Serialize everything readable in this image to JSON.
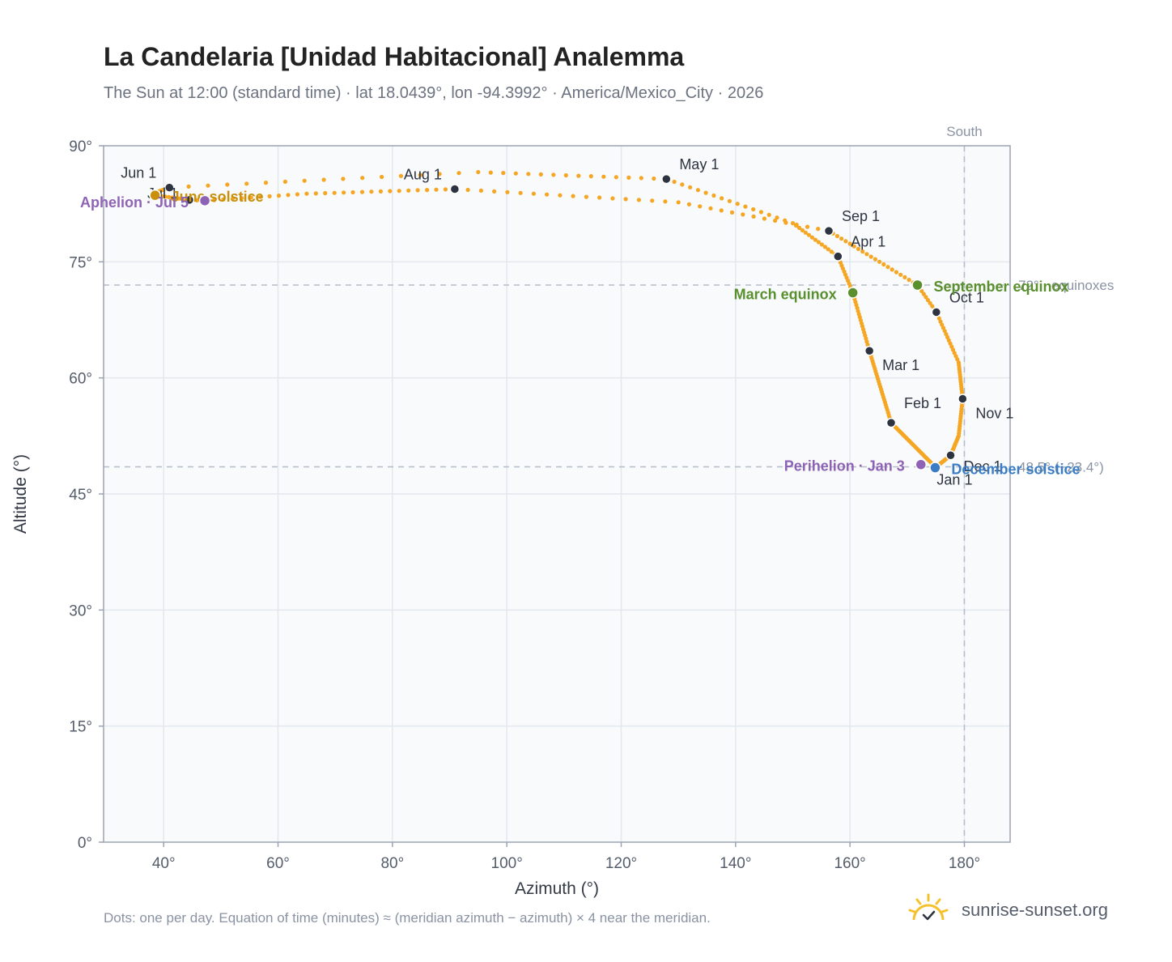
{
  "header": {
    "title": "La Candelaria [Unidad Habitacional] Analemma",
    "subtitle": "The Sun at 12:00 (standard time) · lat 18.0439°, lon -94.3992° · America/Mexico_City · 2026"
  },
  "footer": {
    "note": "Dots: one per day. Equation of time (minutes) ≈ (meridian azimuth − azimuth) × 4 near the meridian.",
    "brand": "sunrise-sunset.org"
  },
  "chart_data": {
    "type": "scatter",
    "xlabel": "Azimuth (°)",
    "ylabel": "Altitude (°)",
    "xlim": [
      29.5,
      188
    ],
    "ylim": [
      0,
      90
    ],
    "x_ticks": [
      40,
      60,
      80,
      100,
      120,
      140,
      160,
      180
    ],
    "y_ticks": [
      0,
      15,
      30,
      45,
      60,
      75,
      90
    ],
    "x_tick_labels": [
      "40°",
      "60°",
      "80°",
      "100°",
      "120°",
      "140°",
      "160°",
      "180°"
    ],
    "y_tick_labels": [
      "0°",
      "15°",
      "30°",
      "45°",
      "60°",
      "75°",
      "90°"
    ],
    "grid": true,
    "colors": {
      "path": "#f5a623",
      "month": "#2d3440",
      "equinox": "#5a8f2e",
      "solstice_june": "#c8900c",
      "solstice_december": "#3b7dc4",
      "apsis": "#8e63b5",
      "reference": "#b4bcc8",
      "plot_bg": "#f8fafc"
    },
    "reference_lines": {
      "south": {
        "azimuth": 180,
        "label": "South"
      },
      "equinox_altitude": {
        "altitude": 72.0,
        "label": "72° · equinoxes"
      },
      "december_altitude": {
        "altitude": 48.5,
        "label": "48.5° (−23.4°)"
      }
    },
    "month_markers": [
      {
        "label": "Jan 1",
        "az": 174.9,
        "alt": 48.5
      },
      {
        "label": "Feb 1",
        "az": 167.2,
        "alt": 54.2
      },
      {
        "label": "Mar 1",
        "az": 163.4,
        "alt": 63.5
      },
      {
        "label": "Apr 1",
        "az": 157.9,
        "alt": 75.7
      },
      {
        "label": "May 1",
        "az": 127.9,
        "alt": 85.7
      },
      {
        "label": "Jun 1",
        "az": 41.0,
        "alt": 84.6
      },
      {
        "label": "Jul 1",
        "az": 44.5,
        "alt": 83.0
      },
      {
        "label": "Aug 1",
        "az": 90.9,
        "alt": 84.4
      },
      {
        "label": "Sep 1",
        "az": 156.3,
        "alt": 79.0
      },
      {
        "label": "Oct 1",
        "az": 175.1,
        "alt": 68.5
      },
      {
        "label": "Nov 1",
        "az": 179.7,
        "alt": 57.3
      },
      {
        "label": "Dec 1",
        "az": 177.6,
        "alt": 50.0
      }
    ],
    "events": [
      {
        "label": "March equinox",
        "az": 160.5,
        "alt": 71.0,
        "kind": "equinox"
      },
      {
        "label": "September equinox",
        "az": 171.8,
        "alt": 72.0,
        "kind": "equinox"
      },
      {
        "label": "June solstice",
        "az": 38.5,
        "alt": 83.6,
        "kind": "solstice_june"
      },
      {
        "label": "December solstice",
        "az": 174.9,
        "alt": 48.4,
        "kind": "solstice_december"
      },
      {
        "label": "Perihelion · Jan 3",
        "az": 172.4,
        "alt": 48.8,
        "kind": "apsis"
      },
      {
        "label": "Aphelion · Jul 5",
        "az": 47.2,
        "alt": 82.9,
        "kind": "apsis"
      }
    ],
    "path_anchors": [
      {
        "doy": 1,
        "az": 174.9,
        "alt": 48.5
      },
      {
        "doy": 32,
        "az": 167.2,
        "alt": 54.2
      },
      {
        "doy": 60,
        "az": 163.4,
        "alt": 63.5
      },
      {
        "doy": 79,
        "az": 160.5,
        "alt": 71.0
      },
      {
        "doy": 91,
        "az": 157.9,
        "alt": 75.7
      },
      {
        "doy": 105,
        "az": 150.0,
        "alt": 80.0
      },
      {
        "doy": 121,
        "az": 127.9,
        "alt": 85.7
      },
      {
        "doy": 136,
        "az": 95.0,
        "alt": 86.6
      },
      {
        "doy": 152,
        "az": 41.0,
        "alt": 84.6
      },
      {
        "doy": 160,
        "az": 38.0,
        "alt": 83.8
      },
      {
        "doy": 172,
        "az": 38.5,
        "alt": 83.6
      },
      {
        "doy": 182,
        "az": 44.5,
        "alt": 83.0
      },
      {
        "doy": 186,
        "az": 47.2,
        "alt": 82.9
      },
      {
        "doy": 197,
        "az": 65.0,
        "alt": 83.8
      },
      {
        "doy": 213,
        "az": 90.9,
        "alt": 84.4
      },
      {
        "doy": 230,
        "az": 130.0,
        "alt": 82.7
      },
      {
        "doy": 244,
        "az": 156.3,
        "alt": 79.0
      },
      {
        "doy": 265,
        "az": 171.8,
        "alt": 72.0
      },
      {
        "doy": 274,
        "az": 175.1,
        "alt": 68.5
      },
      {
        "doy": 290,
        "az": 179.0,
        "alt": 62.0
      },
      {
        "doy": 305,
        "az": 179.7,
        "alt": 57.3
      },
      {
        "doy": 320,
        "az": 179.0,
        "alt": 52.5
      },
      {
        "doy": 335,
        "az": 177.6,
        "alt": 50.0
      },
      {
        "doy": 355,
        "az": 174.9,
        "alt": 48.4
      },
      {
        "doy": 366,
        "az": 174.9,
        "alt": 48.5
      }
    ]
  }
}
